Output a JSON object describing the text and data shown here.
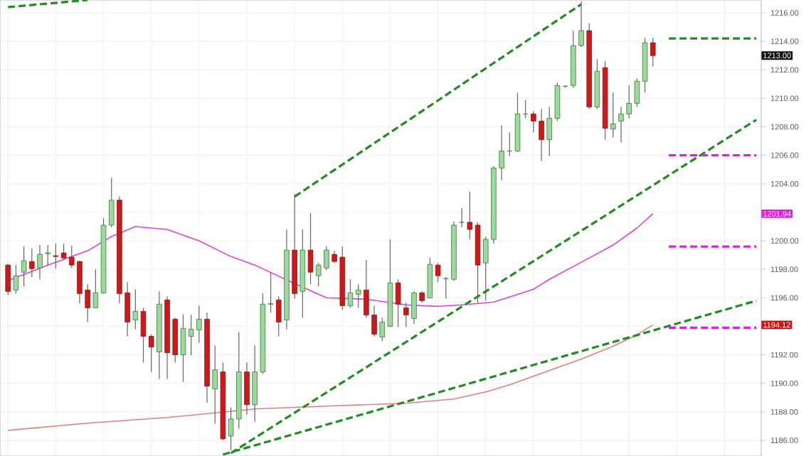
{
  "chart_data": {
    "type": "candlestick",
    "categories": [
      null,
      null,
      null,
      null,
      null,
      null,
      null,
      null,
      null,
      null,
      null,
      null,
      null,
      null,
      null,
      null,
      null,
      null,
      null,
      null,
      null,
      null,
      null,
      null,
      null,
      null,
      null,
      null,
      null,
      null,
      null,
      null,
      null,
      null,
      null,
      null,
      null,
      null,
      null,
      null,
      null,
      null,
      null,
      null,
      null,
      null,
      null,
      null,
      null,
      null,
      null,
      null,
      null,
      null,
      null,
      null,
      null,
      null,
      null,
      null,
      null,
      null,
      null,
      null,
      null,
      null,
      null,
      null,
      null,
      null,
      null,
      null,
      null,
      null,
      null,
      null,
      null,
      null,
      null,
      null,
      null,
      null,
      null,
      null,
      null,
      null,
      null,
      null,
      null,
      null,
      null,
      null,
      null,
      null,
      null
    ],
    "ohlc": [
      [
        1198.3,
        1198.4,
        1196.2,
        1196.45
      ],
      [
        1196.55,
        1198.3,
        1196.3,
        1197.55
      ],
      [
        1197.8,
        1199.6,
        1196.8,
        1198.6
      ],
      [
        1198.55,
        1199.45,
        1197.45,
        1198.05
      ],
      [
        1198.1,
        1199.7,
        1197.3,
        1199.05
      ],
      [
        1199.1,
        1199.7,
        1198.3,
        1199.15
      ],
      [
        1198.95,
        1199.8,
        1198.05,
        1198.9
      ],
      [
        1199.15,
        1199.8,
        1198.65,
        1198.8
      ],
      [
        1198.85,
        1199.65,
        1198.1,
        1198.3
      ],
      [
        1198.55,
        1198.6,
        1195.6,
        1196.3
      ],
      [
        1196.55,
        1196.95,
        1194.3,
        1195.3
      ],
      [
        1195.3,
        1198.0,
        1195.3,
        1196.35
      ],
      [
        1196.35,
        1201.6,
        1196.3,
        1201.1
      ],
      [
        1201.1,
        1204.4,
        1200.95,
        1202.85
      ],
      [
        1202.85,
        1203.1,
        1195.6,
        1196.3
      ],
      [
        1196.35,
        1197.1,
        1193.3,
        1194.3
      ],
      [
        1194.45,
        1196.6,
        1193.8,
        1195.05
      ],
      [
        1195.05,
        1195.3,
        1191.45,
        1193.3
      ],
      [
        1193.3,
        1193.45,
        1190.8,
        1192.55
      ],
      [
        1192.2,
        1196.45,
        1190.3,
        1195.55
      ],
      [
        1195.85,
        1196.1,
        1190.3,
        1192.15
      ],
      [
        1194.5,
        1194.6,
        1191.45,
        1192.0
      ],
      [
        1192.0,
        1194.85,
        1190.1,
        1193.85
      ],
      [
        1193.3,
        1194.8,
        1191.95,
        1193.8
      ],
      [
        1193.75,
        1195.45,
        1192.85,
        1194.5
      ],
      [
        1194.5,
        1194.95,
        1188.65,
        1189.8
      ],
      [
        1189.6,
        1192.65,
        1187.15,
        1190.95
      ],
      [
        1190.8,
        1191.45,
        1186.0,
        1186.1
      ],
      [
        1186.3,
        1188.3,
        1185.3,
        1187.5
      ],
      [
        1187.5,
        1193.6,
        1186.8,
        1190.8
      ],
      [
        1190.8,
        1191.45,
        1187.8,
        1188.5
      ],
      [
        1188.5,
        1192.65,
        1187.3,
        1190.8
      ],
      [
        1190.8,
        1196.3,
        1190.65,
        1195.55
      ],
      [
        1195.55,
        1197.8,
        1194.95,
        1195.6
      ],
      [
        1195.85,
        1196.1,
        1193.3,
        1194.3
      ],
      [
        1194.45,
        1200.8,
        1193.8,
        1199.35
      ],
      [
        1199.35,
        1203.3,
        1195.95,
        1196.3
      ],
      [
        1196.45,
        1200.8,
        1194.6,
        1199.35
      ],
      [
        1199.35,
        1201.95,
        1196.95,
        1197.8
      ],
      [
        1197.55,
        1198.45,
        1196.8,
        1198.3
      ],
      [
        1198.1,
        1199.6,
        1197.95,
        1199.35
      ],
      [
        1199.05,
        1199.3,
        1198.45,
        1198.55
      ],
      [
        1198.85,
        1199.6,
        1195.15,
        1195.45
      ],
      [
        1195.45,
        1197.3,
        1195.3,
        1196.35
      ],
      [
        1196.25,
        1196.95,
        1195.3,
        1196.55
      ],
      [
        1196.55,
        1198.65,
        1194.6,
        1194.8
      ],
      [
        1194.8,
        1195.45,
        1193.3,
        1193.45
      ],
      [
        1193.25,
        1194.6,
        1192.95,
        1194.3
      ],
      [
        1194.0,
        1200.1,
        1193.95,
        1197.05
      ],
      [
        1197.05,
        1197.3,
        1193.95,
        1195.55
      ],
      [
        1195.3,
        1195.65,
        1193.95,
        1194.8
      ],
      [
        1194.55,
        1196.45,
        1194.15,
        1196.35
      ],
      [
        1196.35,
        1196.45,
        1195.65,
        1195.8
      ],
      [
        1196.0,
        1198.8,
        1195.95,
        1198.35
      ],
      [
        1198.3,
        1198.45,
        1197.1,
        1197.55
      ],
      [
        1197.35,
        1197.45,
        1195.95,
        1197.35
      ],
      [
        1197.3,
        1201.35,
        1197.2,
        1201.1
      ],
      [
        1201.3,
        1202.3,
        1200.95,
        1201.3
      ],
      [
        1201.3,
        1203.45,
        1200.1,
        1200.8
      ],
      [
        1201.1,
        1201.3,
        1195.65,
        1198.3
      ],
      [
        1198.45,
        1200.3,
        1195.8,
        1200.1
      ],
      [
        1200.1,
        1205.25,
        1199.8,
        1205.1
      ],
      [
        1205.1,
        1208.1,
        1204.25,
        1206.3
      ],
      [
        1206.3,
        1207.6,
        1205.95,
        1206.3
      ],
      [
        1206.3,
        1210.4,
        1206.25,
        1208.9
      ],
      [
        1208.9,
        1209.9,
        1208.6,
        1208.9
      ],
      [
        1208.9,
        1209.1,
        1207.6,
        1208.4
      ],
      [
        1208.4,
        1209.25,
        1205.6,
        1207.1
      ],
      [
        1207.1,
        1209.4,
        1205.95,
        1208.6
      ],
      [
        1208.6,
        1211.1,
        1208.4,
        1210.9
      ],
      [
        1210.85,
        1210.9,
        1210.75,
        1210.85
      ],
      [
        1210.9,
        1214.75,
        1210.75,
        1213.7
      ],
      [
        1213.7,
        1216.8,
        1213.6,
        1214.75
      ],
      [
        1214.75,
        1215.25,
        1209.25,
        1209.4
      ],
      [
        1209.4,
        1212.75,
        1209.25,
        1211.9
      ],
      [
        1212.15,
        1212.6,
        1207.1,
        1207.9
      ],
      [
        1207.85,
        1210.4,
        1207.25,
        1208.2
      ],
      [
        1208.4,
        1209.4,
        1206.9,
        1208.9
      ],
      [
        1208.9,
        1210.9,
        1208.6,
        1209.65
      ],
      [
        1209.65,
        1211.4,
        1209.4,
        1211.2
      ],
      [
        1211.2,
        1214.25,
        1210.4,
        1213.9
      ],
      [
        1213.9,
        1214.25,
        1212.25,
        1213.0
      ],
      null,
      null,
      null,
      null,
      null,
      null,
      null,
      null,
      null,
      null,
      null,
      null,
      null
    ],
    "series": [
      {
        "type": "line",
        "color": "#e040e0",
        "values": [
          1197.2,
          null,
          null,
          null,
          null,
          1198.3,
          null,
          null,
          null,
          null,
          1199.3,
          null,
          null,
          1200.3,
          null,
          null,
          1201.0,
          null,
          null,
          null,
          1200.8,
          null,
          null,
          null,
          1200.0,
          null,
          null,
          null,
          1198.9,
          null,
          null,
          1198.3,
          null,
          null,
          null,
          null,
          1197.0,
          null,
          null,
          null,
          1196.0,
          null,
          null,
          null,
          null,
          1195.9,
          null,
          null,
          null,
          null,
          1195.5,
          null,
          null,
          null,
          1195.4,
          null,
          null,
          1195.5,
          null,
          null,
          null,
          1195.7,
          null,
          null,
          null,
          null,
          1196.6,
          null,
          1197.3,
          null,
          null,
          null,
          1198.5,
          null,
          null,
          null,
          1199.7,
          null,
          null,
          1200.9,
          null,
          1201.9,
          null,
          null,
          null,
          null,
          null,
          null,
          null,
          null,
          null,
          null,
          null,
          null,
          null
        ]
      },
      {
        "type": "line",
        "color": "#e08080",
        "values": [
          1186.7,
          null,
          null,
          null,
          null,
          null,
          null,
          null,
          null,
          null,
          1187.2,
          null,
          null,
          null,
          null,
          null,
          null,
          null,
          null,
          null,
          1187.6,
          null,
          null,
          null,
          null,
          null,
          null,
          null,
          null,
          null,
          null,
          1188.2,
          null,
          null,
          null,
          null,
          null,
          null,
          null,
          null,
          1188.4,
          null,
          null,
          null,
          null,
          null,
          null,
          null,
          null,
          null,
          1188.6,
          null,
          null,
          null,
          null,
          null,
          1188.9,
          null,
          null,
          null,
          1189.4,
          null,
          null,
          1189.9,
          null,
          null,
          null,
          null,
          1190.9,
          null,
          null,
          null,
          1191.7,
          null,
          null,
          null,
          1192.6,
          null,
          null,
          1193.4,
          null,
          1194.1,
          null,
          null,
          null,
          null,
          null,
          null,
          null,
          null,
          null,
          null,
          null,
          null,
          null
        ]
      },
      {
        "type": "line",
        "color": "#228b22",
        "line_style": "dashed",
        "values": [
          1216.4,
          null,
          null,
          null,
          null,
          null,
          null,
          null,
          null,
          null,
          1216.9,
          null,
          null,
          null,
          null,
          null,
          null,
          null,
          null,
          null,
          null,
          null,
          null,
          null,
          null,
          null,
          null,
          null,
          null,
          null,
          null,
          null,
          null,
          null,
          null,
          null,
          null,
          null,
          null,
          null,
          null,
          null,
          null,
          null,
          null,
          null,
          null,
          null,
          null,
          null,
          null,
          null,
          null,
          null,
          null,
          null,
          null,
          null,
          null,
          null,
          null,
          null,
          null,
          null,
          null,
          null,
          null,
          null,
          null,
          null,
          null,
          null,
          null,
          null,
          null,
          null,
          null,
          null,
          null,
          null,
          null,
          null,
          null,
          null,
          null,
          null,
          null,
          null,
          null,
          null,
          null,
          null,
          null,
          null,
          null
        ]
      },
      {
        "type": "line",
        "color": "#228b22",
        "line_style": "dashed",
        "values": [
          null,
          null,
          null,
          null,
          null,
          null,
          null,
          null,
          null,
          null,
          null,
          null,
          null,
          null,
          null,
          null,
          null,
          null,
          null,
          null,
          null,
          null,
          null,
          null,
          null,
          null,
          null,
          null,
          null,
          null,
          null,
          null,
          null,
          null,
          null,
          null,
          1203.1,
          null,
          null,
          null,
          null,
          null,
          null,
          null,
          null,
          null,
          null,
          null,
          null,
          null,
          null,
          null,
          null,
          null,
          null,
          null,
          null,
          null,
          null,
          null,
          null,
          null,
          null,
          null,
          null,
          null,
          null,
          null,
          null,
          null,
          null,
          null,
          1216.6,
          null,
          null,
          null,
          null,
          null,
          null,
          null,
          null,
          null,
          null,
          null,
          null,
          null,
          null,
          null,
          null,
          null,
          null,
          null,
          null,
          null,
          null
        ]
      },
      {
        "type": "line",
        "color": "#228b22",
        "line_style": "dashed",
        "values": [
          null,
          null,
          null,
          null,
          null,
          null,
          null,
          null,
          null,
          null,
          null,
          null,
          null,
          null,
          null,
          null,
          null,
          null,
          null,
          null,
          null,
          null,
          null,
          null,
          null,
          null,
          null,
          null,
          1185.1,
          null,
          null,
          null,
          null,
          null,
          null,
          null,
          null,
          null,
          null,
          null,
          null,
          null,
          null,
          null,
          null,
          null,
          null,
          null,
          null,
          null,
          null,
          null,
          null,
          null,
          null,
          null,
          null,
          null,
          null,
          null,
          null,
          null,
          null,
          null,
          null,
          null,
          null,
          null,
          null,
          null,
          null,
          null,
          null,
          null,
          null,
          null,
          null,
          null,
          null,
          null,
          null,
          null,
          null,
          null,
          null,
          null,
          null,
          null,
          null,
          null,
          null,
          null,
          null,
          null,
          1208.5
        ]
      },
      {
        "type": "line",
        "color": "#228b22",
        "line_style": "dashed",
        "values": [
          null,
          null,
          null,
          null,
          null,
          null,
          null,
          null,
          null,
          null,
          null,
          null,
          null,
          null,
          null,
          null,
          null,
          null,
          null,
          null,
          null,
          null,
          null,
          null,
          null,
          null,
          null,
          1185.0,
          null,
          null,
          null,
          null,
          null,
          null,
          null,
          null,
          null,
          null,
          null,
          null,
          null,
          null,
          null,
          null,
          null,
          null,
          null,
          null,
          null,
          null,
          null,
          null,
          null,
          null,
          null,
          null,
          null,
          null,
          null,
          null,
          null,
          null,
          null,
          null,
          null,
          null,
          null,
          null,
          null,
          null,
          null,
          null,
          null,
          null,
          null,
          null,
          null,
          null,
          null,
          null,
          null,
          null,
          null,
          null,
          null,
          null,
          null,
          null,
          null,
          null,
          null,
          null,
          null,
          null,
          1195.8
        ]
      },
      {
        "type": "line",
        "color": "#228b22",
        "line_style": "dashed",
        "values": [
          null,
          null,
          null,
          null,
          null,
          null,
          null,
          null,
          null,
          null,
          null,
          null,
          null,
          null,
          null,
          null,
          null,
          null,
          null,
          null,
          null,
          null,
          null,
          null,
          null,
          null,
          null,
          null,
          null,
          null,
          null,
          null,
          null,
          null,
          null,
          null,
          null,
          null,
          null,
          null,
          null,
          null,
          null,
          null,
          null,
          null,
          null,
          null,
          null,
          null,
          null,
          null,
          null,
          null,
          null,
          null,
          null,
          null,
          null,
          null,
          null,
          null,
          null,
          null,
          null,
          null,
          null,
          null,
          null,
          null,
          null,
          null,
          null,
          null,
          null,
          null,
          null,
          null,
          null,
          null,
          null,
          null,
          null,
          1214.2,
          null,
          null,
          null,
          null,
          null,
          null,
          null,
          null,
          null,
          null,
          1214.2
        ]
      },
      {
        "type": "line",
        "color": "#e020e0",
        "line_style": "dashed",
        "values": [
          null,
          null,
          null,
          null,
          null,
          null,
          null,
          null,
          null,
          null,
          null,
          null,
          null,
          null,
          null,
          null,
          null,
          null,
          null,
          null,
          null,
          null,
          null,
          null,
          null,
          null,
          null,
          null,
          null,
          null,
          null,
          null,
          null,
          null,
          null,
          null,
          null,
          null,
          null,
          null,
          null,
          null,
          null,
          null,
          null,
          null,
          null,
          null,
          null,
          null,
          null,
          null,
          null,
          null,
          null,
          null,
          null,
          null,
          null,
          null,
          null,
          null,
          null,
          null,
          null,
          null,
          null,
          null,
          null,
          null,
          null,
          null,
          null,
          null,
          null,
          null,
          null,
          null,
          null,
          null,
          null,
          null,
          null,
          1206.0,
          null,
          null,
          null,
          null,
          null,
          null,
          null,
          null,
          null,
          null,
          1206.0
        ]
      },
      {
        "type": "line",
        "color": "#e020e0",
        "line_style": "dashed",
        "values": [
          null,
          null,
          null,
          null,
          null,
          null,
          null,
          null,
          null,
          null,
          null,
          null,
          null,
          null,
          null,
          null,
          null,
          null,
          null,
          null,
          null,
          null,
          null,
          null,
          null,
          null,
          null,
          null,
          null,
          null,
          null,
          null,
          null,
          null,
          null,
          null,
          null,
          null,
          null,
          null,
          null,
          null,
          null,
          null,
          null,
          null,
          null,
          null,
          null,
          null,
          null,
          null,
          null,
          null,
          null,
          null,
          null,
          null,
          null,
          null,
          null,
          null,
          null,
          null,
          null,
          null,
          null,
          null,
          null,
          null,
          null,
          null,
          null,
          null,
          null,
          null,
          null,
          null,
          null,
          null,
          null,
          null,
          null,
          1199.6,
          null,
          null,
          null,
          null,
          null,
          null,
          null,
          null,
          null,
          null,
          1199.6
        ]
      },
      {
        "type": "line",
        "color": "#e020e0",
        "line_style": "dashed",
        "values": [
          null,
          null,
          null,
          null,
          null,
          null,
          null,
          null,
          null,
          null,
          null,
          null,
          null,
          null,
          null,
          null,
          null,
          null,
          null,
          null,
          null,
          null,
          null,
          null,
          null,
          null,
          null,
          null,
          null,
          null,
          null,
          null,
          null,
          null,
          null,
          null,
          null,
          null,
          null,
          null,
          null,
          null,
          null,
          null,
          null,
          null,
          null,
          null,
          null,
          null,
          null,
          null,
          null,
          null,
          null,
          null,
          null,
          null,
          null,
          null,
          null,
          null,
          null,
          null,
          null,
          null,
          null,
          null,
          null,
          null,
          null,
          null,
          null,
          null,
          null,
          null,
          null,
          null,
          null,
          null,
          null,
          null,
          null,
          1193.9,
          null,
          null,
          null,
          null,
          null,
          null,
          null,
          null,
          null,
          null,
          1193.9
        ]
      }
    ],
    "ylim": [
      1184.9,
      1216.9
    ],
    "yticks": [
      {
        "value": 1186,
        "label": "1186.00"
      },
      {
        "value": 1188,
        "label": "1188.00"
      },
      {
        "value": 1190,
        "label": "1190.00"
      },
      {
        "value": 1192,
        "label": "1192.00"
      },
      {
        "value": 1194,
        "label": null
      },
      {
        "value": 1196,
        "label": "1196.00"
      },
      {
        "value": 1198,
        "label": "1198.00"
      },
      {
        "value": 1200,
        "label": "1200.00"
      },
      {
        "value": 1202,
        "label": null
      },
      {
        "value": 1204,
        "label": "1204.00"
      },
      {
        "value": 1206,
        "label": "1206.00"
      },
      {
        "value": 1208,
        "label": "1208.00"
      },
      {
        "value": 1210,
        "label": "1210.00"
      },
      {
        "value": 1212,
        "label": "1212.00"
      },
      {
        "value": 1214,
        "label": "1214.00"
      },
      {
        "value": 1216,
        "label": "1216.00"
      }
    ],
    "grid": true,
    "annotations": [
      "1213.00",
      "1201.94",
      "1194.12"
    ]
  }
}
